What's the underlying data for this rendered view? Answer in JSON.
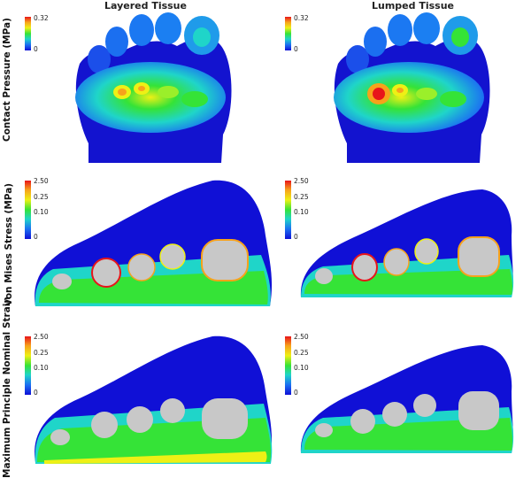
{
  "columns": [
    "Layered Tissue",
    "Lumped Tissue"
  ],
  "rows": [
    {
      "label": "Contact Pressure (MPa)",
      "legend_ticks": [
        "0.32",
        "0"
      ]
    },
    {
      "label": "von Mises Stress (MPa)",
      "legend_ticks": [
        "2.50",
        "0.25",
        "0.10",
        "0"
      ]
    },
    {
      "label": "Maximum Principle Nominal Strain",
      "legend_ticks": [
        "2.50",
        "0.25",
        "0.10",
        "0"
      ]
    }
  ],
  "colors": {
    "max": "#e8141a",
    "high": "#f7a21b",
    "mid_high": "#eef015",
    "mid": "#35e337",
    "low": "#1fd5c9",
    "min": "#1010d6",
    "bone": "#c8c8c8"
  }
}
